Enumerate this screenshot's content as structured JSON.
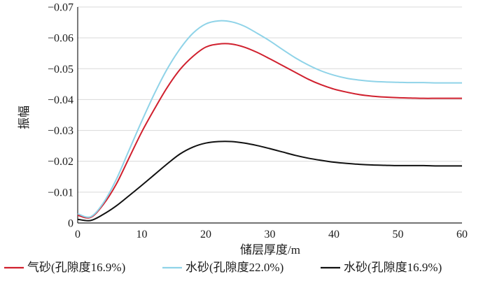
{
  "chart_data": {
    "type": "line",
    "xlabel": "储层厚度/m",
    "ylabel": "振幅",
    "xlim": [
      0,
      60
    ],
    "ylim": [
      0,
      -0.07
    ],
    "xticks": [
      0,
      10,
      20,
      30,
      40,
      50,
      60
    ],
    "xtick_labels": [
      "0",
      "10",
      "20",
      "30",
      "40",
      "50",
      "60"
    ],
    "yticks": [
      0,
      -0.01,
      -0.02,
      -0.03,
      -0.04,
      -0.05,
      -0.06,
      -0.07
    ],
    "ytick_labels": [
      "0",
      "−0.01",
      "−0.02",
      "−0.03",
      "−0.04",
      "−0.05",
      "−0.06",
      "−0.07"
    ],
    "grid": "horizontal",
    "legend_position": "bottom",
    "x": [
      0,
      2,
      4,
      6,
      8,
      10,
      12,
      14,
      16,
      18,
      20,
      22,
      24,
      26,
      28,
      30,
      32,
      34,
      36,
      38,
      40,
      42,
      44,
      46,
      48,
      50,
      52,
      54,
      56,
      58,
      60
    ],
    "series": [
      {
        "name": "气砂(孔隙度16.9%)",
        "color": "#d0202e",
        "values": [
          -0.0025,
          -0.0018,
          -0.006,
          -0.0125,
          -0.021,
          -0.0295,
          -0.037,
          -0.044,
          -0.0498,
          -0.054,
          -0.057,
          -0.058,
          -0.058,
          -0.057,
          -0.0553,
          -0.0532,
          -0.051,
          -0.0488,
          -0.0466,
          -0.0448,
          -0.0434,
          -0.0424,
          -0.0416,
          -0.0411,
          -0.0408,
          -0.0406,
          -0.0405,
          -0.0404,
          -0.0404,
          -0.0404,
          -0.0404
        ]
      },
      {
        "name": "水砂(孔隙度22.0%)",
        "color": "#8fd3e8",
        "values": [
          -0.003,
          -0.002,
          -0.0065,
          -0.014,
          -0.0235,
          -0.033,
          -0.042,
          -0.05,
          -0.0565,
          -0.0615,
          -0.0645,
          -0.0655,
          -0.0652,
          -0.0638,
          -0.0615,
          -0.059,
          -0.0562,
          -0.0535,
          -0.0512,
          -0.0493,
          -0.0479,
          -0.0469,
          -0.0463,
          -0.0459,
          -0.0457,
          -0.0456,
          -0.0455,
          -0.0455,
          -0.0454,
          -0.0454,
          -0.0454
        ]
      },
      {
        "name": "水砂(孔隙度16.9%)",
        "color": "#111111",
        "values": [
          -0.0012,
          -0.0008,
          -0.0028,
          -0.0055,
          -0.0088,
          -0.0122,
          -0.0157,
          -0.0192,
          -0.0224,
          -0.0246,
          -0.0259,
          -0.0264,
          -0.0264,
          -0.0259,
          -0.0251,
          -0.0241,
          -0.023,
          -0.0219,
          -0.021,
          -0.0203,
          -0.0197,
          -0.0193,
          -0.019,
          -0.0188,
          -0.0187,
          -0.0186,
          -0.0186,
          -0.0186,
          -0.0185,
          -0.0185,
          -0.0185
        ]
      }
    ]
  }
}
